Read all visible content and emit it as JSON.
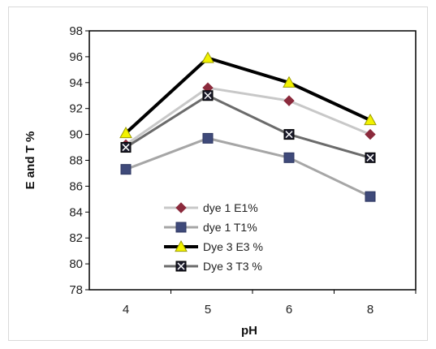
{
  "chart_data": {
    "type": "line",
    "categories": [
      "4",
      "5",
      "6",
      "8"
    ],
    "xlabel": "pH",
    "ylabel": "E and T %",
    "ylim": [
      78,
      98
    ],
    "yticks": [
      78,
      80,
      82,
      84,
      86,
      88,
      90,
      92,
      94,
      96,
      98
    ],
    "grid": false,
    "legend_position": "bottom-left inside",
    "series": [
      {
        "name": "dye 1 E1%",
        "values": [
          89.2,
          93.6,
          92.6,
          90.0
        ],
        "line_color": "#c8c8c8",
        "marker": "diamond",
        "marker_color": "#8b2a3c"
      },
      {
        "name": "dye 1 T1%",
        "values": [
          87.3,
          89.7,
          88.2,
          85.2
        ],
        "line_color": "#a6a6a6",
        "marker": "square",
        "marker_color": "#3f4a7a"
      },
      {
        "name": "Dye 3 E3 %",
        "values": [
          90.1,
          95.9,
          94.0,
          91.1
        ],
        "line_color": "#000000",
        "marker": "triangle",
        "marker_color": "#f2f200"
      },
      {
        "name": "Dye 3 T3 %",
        "values": [
          89.0,
          93.0,
          90.0,
          88.2
        ],
        "line_color": "#6b6b6b",
        "marker": "x-square",
        "marker_color": "#1a1a2a"
      }
    ]
  }
}
